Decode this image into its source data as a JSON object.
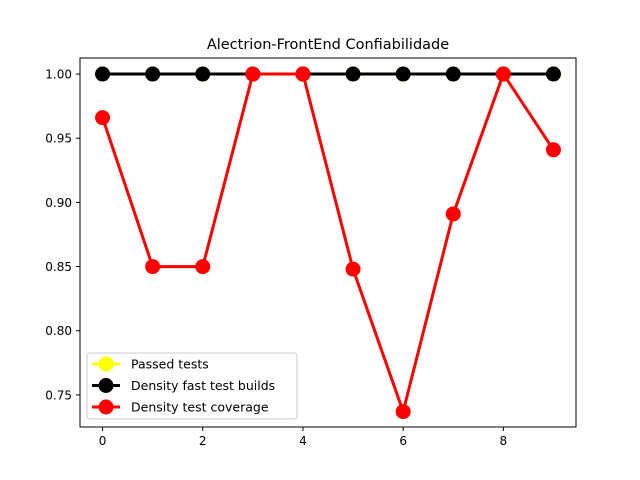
{
  "chart_data": {
    "type": "line",
    "title": "Alectrion-FrontEnd Confiabilidade",
    "xlabel": "",
    "ylabel": "",
    "x": [
      0,
      1,
      2,
      3,
      4,
      5,
      6,
      7,
      8,
      9
    ],
    "xlim": [
      -0.45,
      9.45
    ],
    "ylim": [
      0.725,
      1.0125
    ],
    "xticks": [
      0,
      2,
      4,
      6,
      8
    ],
    "yticks": [
      0.75,
      0.8,
      0.85,
      0.9,
      0.95,
      1.0
    ],
    "ytick_labels": [
      "0.75",
      "0.80",
      "0.85",
      "0.90",
      "0.95",
      "1.00"
    ],
    "grid": false,
    "legend_position": "lower-left",
    "series": [
      {
        "name": "Passed tests",
        "color": "#ffff00",
        "values": [
          1,
          1,
          1,
          1,
          1,
          1,
          1,
          1,
          1,
          1
        ]
      },
      {
        "name": "Density fast test builds",
        "color": "#000000",
        "values": [
          1,
          1,
          1,
          1,
          1,
          1,
          1,
          1,
          1,
          1
        ]
      },
      {
        "name": "Density test coverage",
        "color": "#ff0000",
        "values": [
          0.966,
          0.85,
          0.85,
          1.0,
          1.0,
          0.848,
          0.737,
          0.891,
          1.0,
          0.941
        ]
      }
    ]
  }
}
